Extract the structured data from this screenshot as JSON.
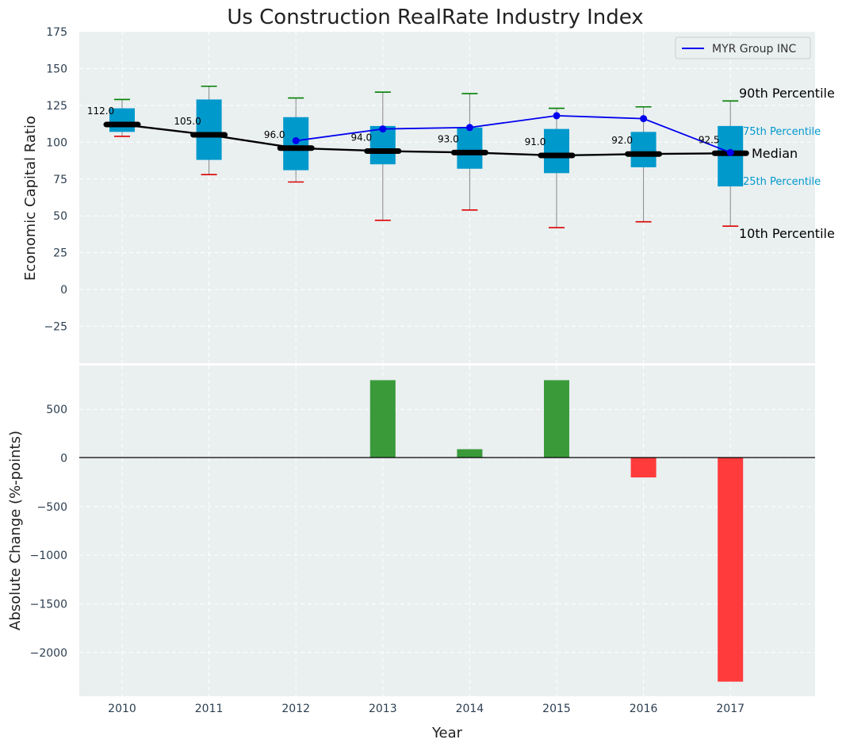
{
  "chart_data": [
    {
      "type": "box",
      "title": "Us Construction RealRate Industry Index",
      "xlabel": "",
      "ylabel": "Economic Capital Ratio",
      "ylim": [
        -50,
        175
      ],
      "yticks": [
        -25,
        0,
        25,
        50,
        75,
        100,
        125,
        150,
        175
      ],
      "grid": true,
      "legend_position": "top-right",
      "categories": [
        "2010",
        "2011",
        "2012",
        "2013",
        "2014",
        "2015",
        "2016",
        "2017"
      ],
      "boxes": [
        {
          "year": "2010",
          "p10": 104,
          "p25": 107,
          "median": 112.0,
          "p75": 123,
          "p90": 129
        },
        {
          "year": "2011",
          "p10": 78,
          "p25": 88,
          "median": 105.0,
          "p75": 129,
          "p90": 138
        },
        {
          "year": "2012",
          "p10": 73,
          "p25": 81,
          "median": 96.0,
          "p75": 117,
          "p90": 130
        },
        {
          "year": "2013",
          "p10": 47,
          "p25": 85,
          "median": 94.0,
          "p75": 111,
          "p90": 134
        },
        {
          "year": "2014",
          "p10": 54,
          "p25": 82,
          "median": 93.0,
          "p75": 110,
          "p90": 133
        },
        {
          "year": "2015",
          "p10": 42,
          "p25": 79,
          "median": 91.0,
          "p75": 109,
          "p90": 123
        },
        {
          "year": "2016",
          "p10": 46,
          "p25": 83,
          "median": 92.0,
          "p75": 107,
          "p90": 124
        },
        {
          "year": "2017",
          "p10": 43,
          "p25": 70,
          "median": 92.5,
          "p75": 111,
          "p90": 128
        }
      ],
      "median_labels": [
        "112.0",
        "105.0",
        "96.0",
        "94.0",
        "93.0",
        "91.0",
        "92.0",
        "92.5"
      ],
      "series": [
        {
          "name": "MYR Group INC",
          "x": [
            "2012",
            "2013",
            "2014",
            "2015",
            "2016",
            "2017"
          ],
          "values": [
            101,
            109,
            110,
            118,
            116,
            93
          ],
          "color": "#0000ee"
        }
      ],
      "annotations": {
        "p90": "90th Percentile",
        "p75": "75th Percentile",
        "median": "Median",
        "p25": "25th Percentile",
        "p10": "10th Percentile"
      },
      "colors": {
        "box": "#0099cc",
        "median": "#000000",
        "whisker_top": "#008000",
        "whisker_bottom": "#dd0000"
      }
    },
    {
      "type": "bar",
      "xlabel": "Year",
      "ylabel": "Absolute Change (%-points)",
      "ylim": [
        -2450,
        950
      ],
      "yticks": [
        -2000,
        -1500,
        -1000,
        -500,
        0,
        500
      ],
      "grid": true,
      "categories": [
        "2010",
        "2011",
        "2012",
        "2013",
        "2014",
        "2015",
        "2016",
        "2017"
      ],
      "values": [
        0,
        0,
        0,
        800,
        90,
        800,
        -200,
        -2300
      ],
      "colors": {
        "positive": "#3a9a3a",
        "negative": "#ff3b3b"
      }
    }
  ]
}
